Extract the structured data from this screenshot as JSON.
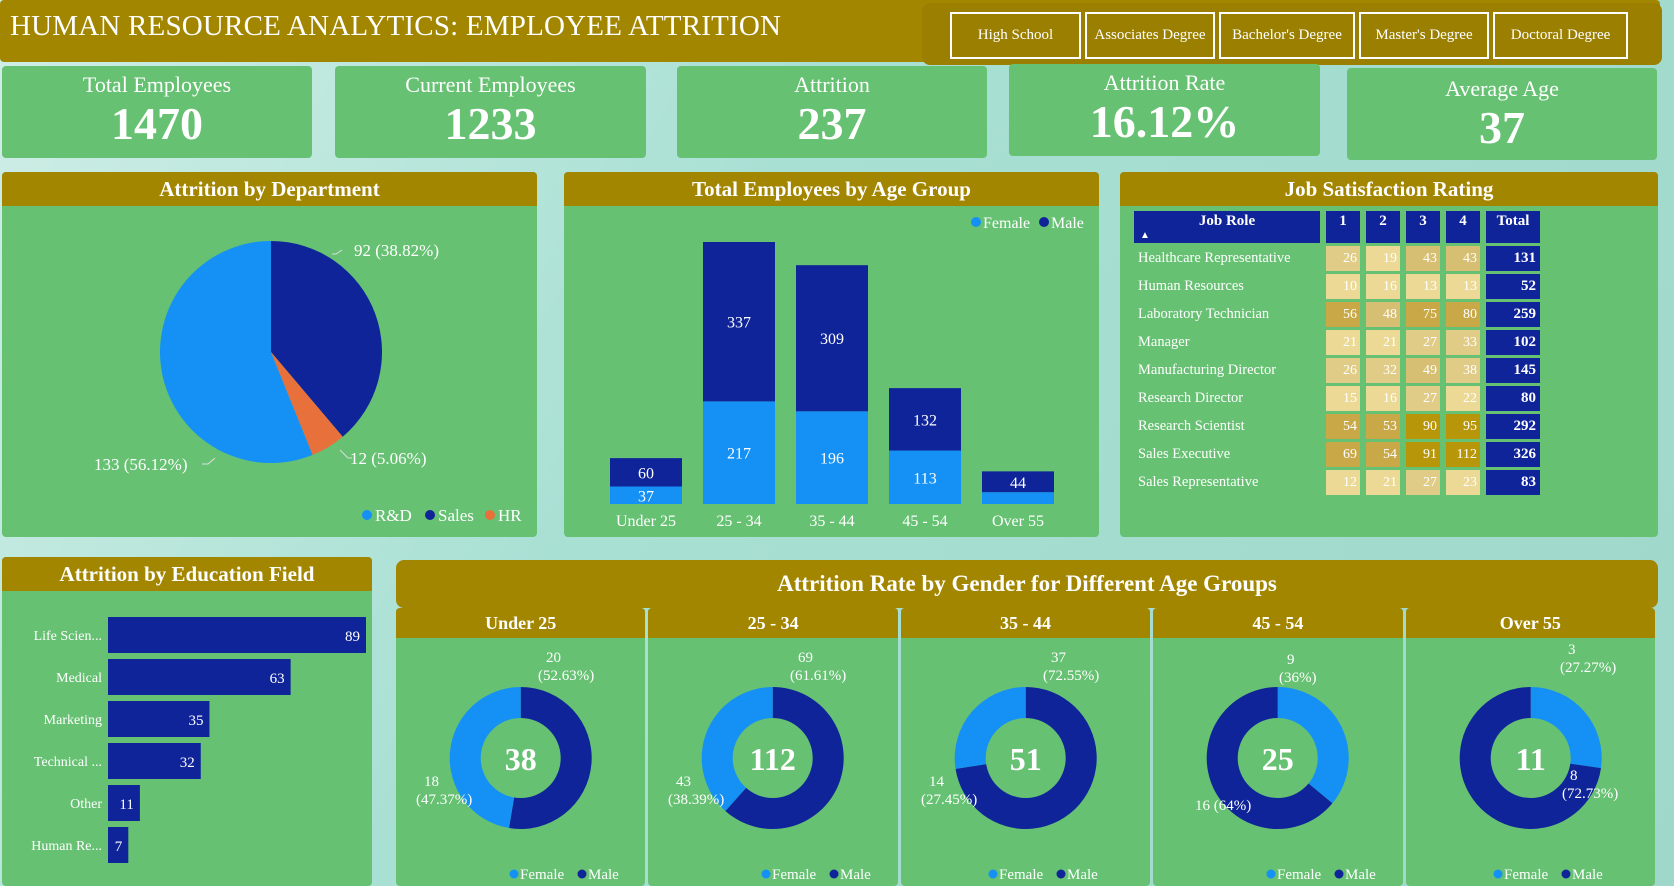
{
  "header": {
    "title": "HUMAN RESOURCE ANALYTICS: EMPLOYEE ATTRITION"
  },
  "filters": [
    "High School",
    "Associates Degree",
    "Bachelor's Degree",
    "Master's Degree",
    "Doctoral Degree"
  ],
  "kpis": [
    {
      "label": "Total Employees",
      "value": "1470"
    },
    {
      "label": "Current Employees",
      "value": "1233"
    },
    {
      "label": "Attrition",
      "value": "237"
    },
    {
      "label": "Attrition Rate",
      "value": "16.12%"
    },
    {
      "label": "Average Age",
      "value": "37"
    }
  ],
  "colors": {
    "navy": "#0f2499",
    "blue": "#1591f5",
    "orange": "#e8703a",
    "panel_green": "#66c172",
    "gold": "#a38600"
  },
  "dept_chart": {
    "title": "Attrition by Department",
    "legend": [
      "R&D",
      "Sales",
      "HR"
    ],
    "labels": [
      "133 (56.12%)",
      "92 (38.82%)",
      "12 (5.06%)"
    ]
  },
  "age_chart": {
    "title": "Total Employees by Age Group",
    "legend": [
      "Female",
      "Male"
    ]
  },
  "job_satisfaction": {
    "title": "Job Satisfaction Rating",
    "headers": [
      "Job Role",
      "1",
      "2",
      "3",
      "4",
      "Total"
    ],
    "rows": [
      {
        "role": "Healthcare Representative",
        "vals": [
          26,
          19,
          43,
          43
        ],
        "total": 131
      },
      {
        "role": "Human Resources",
        "vals": [
          10,
          16,
          13,
          13
        ],
        "total": 52
      },
      {
        "role": "Laboratory Technician",
        "vals": [
          56,
          48,
          75,
          80
        ],
        "total": 259
      },
      {
        "role": "Manager",
        "vals": [
          21,
          21,
          27,
          33
        ],
        "total": 102
      },
      {
        "role": "Manufacturing Director",
        "vals": [
          26,
          32,
          49,
          38
        ],
        "total": 145
      },
      {
        "role": "Research Director",
        "vals": [
          15,
          16,
          27,
          22
        ],
        "total": 80
      },
      {
        "role": "Research Scientist",
        "vals": [
          54,
          53,
          90,
          95
        ],
        "total": 292
      },
      {
        "role": "Sales Executive",
        "vals": [
          69,
          54,
          91,
          112
        ],
        "total": 326
      },
      {
        "role": "Sales Representative",
        "vals": [
          12,
          21,
          27,
          23
        ],
        "total": 83
      }
    ]
  },
  "edu_chart": {
    "title": "Attrition by Education Field"
  },
  "gender_section": {
    "title": "Attrition Rate by Gender for Different Age Groups",
    "legend": [
      "Female",
      "Male"
    ]
  },
  "chart_data": [
    {
      "type": "pie",
      "title": "Attrition by Department",
      "categories": [
        "R&D",
        "Sales",
        "HR"
      ],
      "values": [
        133,
        92,
        12
      ],
      "percents": [
        56.12,
        38.82,
        5.06
      ],
      "legend": "bottom-right"
    },
    {
      "type": "bar",
      "title": "Total Employees by Age Group",
      "categories": [
        "Under 25",
        "25 - 34",
        "35 - 44",
        "45 - 54",
        "Over 55"
      ],
      "series": [
        {
          "name": "Female",
          "values": [
            37,
            217,
            196,
            113,
            25
          ]
        },
        {
          "name": "Male",
          "values": [
            60,
            337,
            309,
            132,
            44
          ]
        }
      ],
      "stacked": true,
      "legend": "top-right"
    },
    {
      "type": "bar",
      "orientation": "horizontal",
      "title": "Attrition by Education Field",
      "categories": [
        "Life Scien...",
        "Medical",
        "Marketing",
        "Technical ...",
        "Other",
        "Human Re..."
      ],
      "values": [
        89,
        63,
        35,
        32,
        11,
        7
      ]
    },
    {
      "type": "pie",
      "donut": true,
      "title": "Under 25",
      "center": "38",
      "categories": [
        "Female",
        "Male"
      ],
      "values": [
        18,
        20
      ],
      "labels": [
        "18\n(47.37%)",
        "20\n(52.63%)"
      ]
    },
    {
      "type": "pie",
      "donut": true,
      "title": "25 - 34",
      "center": "112",
      "categories": [
        "Female",
        "Male"
      ],
      "values": [
        43,
        69
      ],
      "labels": [
        "43\n(38.39%)",
        "69\n(61.61%)"
      ]
    },
    {
      "type": "pie",
      "donut": true,
      "title": "35 - 44",
      "center": "51",
      "categories": [
        "Female",
        "Male"
      ],
      "values": [
        14,
        37
      ],
      "labels": [
        "14\n(27.45%)",
        "37\n(72.55%)"
      ]
    },
    {
      "type": "pie",
      "donut": true,
      "title": "45 - 54",
      "center": "25",
      "categories": [
        "Female",
        "Male"
      ],
      "values": [
        9,
        16
      ],
      "labels": [
        "9\n(36%)",
        "16 (64%)"
      ]
    },
    {
      "type": "pie",
      "donut": true,
      "title": "Over 55",
      "center": "11",
      "categories": [
        "Female",
        "Male"
      ],
      "values": [
        3,
        8
      ],
      "labels": [
        "3\n(27.27%)",
        "8\n(72.73%)"
      ]
    }
  ]
}
